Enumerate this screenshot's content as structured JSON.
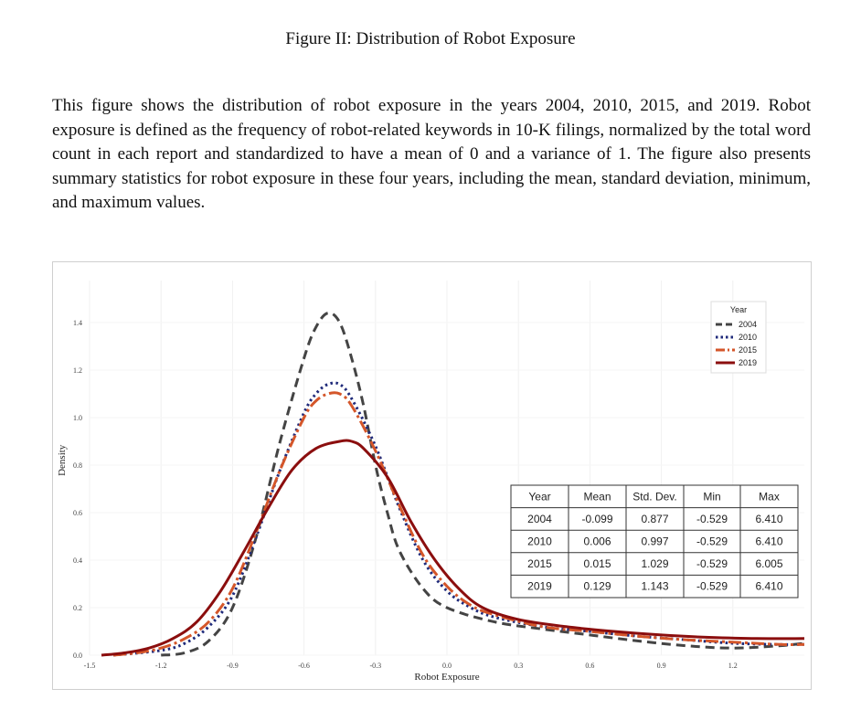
{
  "figure": {
    "title": "Figure II: Distribution of Robot Exposure",
    "caption": "This figure shows the distribution of robot exposure in the years 2004, 2010, 2015, and 2019. Robot exposure is defined as the frequency of robot-related keywords in 10-K filings, normalized by the total word count in each report and standardized to have a mean of 0 and a variance of 1. The figure also presents summary statistics for robot exposure in these four years, including the mean, standard deviation, minimum, and maximum values."
  },
  "chart_data": {
    "type": "line",
    "xlabel": "Robot Exposure",
    "ylabel": "Density",
    "xlim": [
      -1.5,
      1.5
    ],
    "ylim": [
      0.0,
      1.5
    ],
    "x_ticks": [
      "-1.5",
      "-1.2",
      "-0.9",
      "-0.6",
      "-0.3",
      "0.0",
      "0.3",
      "0.6",
      "0.9",
      "1.2"
    ],
    "y_ticks": [
      "0.0",
      "0.2",
      "0.4",
      "0.6",
      "0.8",
      "1.0",
      "1.2",
      "1.4"
    ],
    "grid": true,
    "legend": {
      "title": "Year",
      "position": "top-right"
    },
    "series": [
      {
        "name": "2004",
        "color": "#444444",
        "style": "dashed",
        "points": [
          [
            -1.2,
            0.0
          ],
          [
            -1.1,
            0.01
          ],
          [
            -1.0,
            0.06
          ],
          [
            -0.9,
            0.2
          ],
          [
            -0.8,
            0.5
          ],
          [
            -0.7,
            0.9
          ],
          [
            -0.6,
            1.25
          ],
          [
            -0.55,
            1.38
          ],
          [
            -0.5,
            1.44
          ],
          [
            -0.45,
            1.4
          ],
          [
            -0.4,
            1.25
          ],
          [
            -0.35,
            1.05
          ],
          [
            -0.3,
            0.8
          ],
          [
            -0.25,
            0.6
          ],
          [
            -0.2,
            0.44
          ],
          [
            -0.1,
            0.28
          ],
          [
            0.0,
            0.2
          ],
          [
            0.2,
            0.14
          ],
          [
            0.4,
            0.11
          ],
          [
            0.6,
            0.085
          ],
          [
            0.8,
            0.06
          ],
          [
            1.0,
            0.04
          ],
          [
            1.2,
            0.03
          ],
          [
            1.4,
            0.04
          ],
          [
            1.5,
            0.05
          ]
        ]
      },
      {
        "name": "2010",
        "color": "#1f2a7a",
        "style": "dotted",
        "points": [
          [
            -1.4,
            0.0
          ],
          [
            -1.2,
            0.02
          ],
          [
            -1.1,
            0.05
          ],
          [
            -1.0,
            0.12
          ],
          [
            -0.9,
            0.25
          ],
          [
            -0.8,
            0.5
          ],
          [
            -0.7,
            0.78
          ],
          [
            -0.6,
            1.02
          ],
          [
            -0.55,
            1.1
          ],
          [
            -0.5,
            1.14
          ],
          [
            -0.45,
            1.14
          ],
          [
            -0.4,
            1.08
          ],
          [
            -0.3,
            0.88
          ],
          [
            -0.2,
            0.62
          ],
          [
            -0.1,
            0.4
          ],
          [
            0.0,
            0.27
          ],
          [
            0.1,
            0.2
          ],
          [
            0.2,
            0.16
          ],
          [
            0.4,
            0.12
          ],
          [
            0.6,
            0.1
          ],
          [
            0.8,
            0.08
          ],
          [
            1.0,
            0.065
          ],
          [
            1.2,
            0.05
          ],
          [
            1.4,
            0.045
          ],
          [
            1.5,
            0.045
          ]
        ]
      },
      {
        "name": "2015",
        "color": "#d4562a",
        "style": "dashdot",
        "points": [
          [
            -1.4,
            0.0
          ],
          [
            -1.3,
            0.01
          ],
          [
            -1.2,
            0.03
          ],
          [
            -1.1,
            0.07
          ],
          [
            -1.0,
            0.14
          ],
          [
            -0.9,
            0.28
          ],
          [
            -0.8,
            0.52
          ],
          [
            -0.7,
            0.78
          ],
          [
            -0.6,
            1.0
          ],
          [
            -0.55,
            1.07
          ],
          [
            -0.5,
            1.1
          ],
          [
            -0.45,
            1.1
          ],
          [
            -0.4,
            1.05
          ],
          [
            -0.3,
            0.86
          ],
          [
            -0.2,
            0.63
          ],
          [
            -0.1,
            0.42
          ],
          [
            0.0,
            0.29
          ],
          [
            0.1,
            0.21
          ],
          [
            0.2,
            0.17
          ],
          [
            0.4,
            0.12
          ],
          [
            0.6,
            0.1
          ],
          [
            0.8,
            0.08
          ],
          [
            1.0,
            0.065
          ],
          [
            1.2,
            0.055
          ],
          [
            1.4,
            0.045
          ],
          [
            1.5,
            0.045
          ]
        ]
      },
      {
        "name": "2019",
        "color": "#8b0e0e",
        "style": "solid",
        "points": [
          [
            -1.45,
            0.0
          ],
          [
            -1.35,
            0.01
          ],
          [
            -1.25,
            0.03
          ],
          [
            -1.15,
            0.07
          ],
          [
            -1.05,
            0.14
          ],
          [
            -0.95,
            0.27
          ],
          [
            -0.85,
            0.44
          ],
          [
            -0.75,
            0.62
          ],
          [
            -0.65,
            0.78
          ],
          [
            -0.55,
            0.87
          ],
          [
            -0.45,
            0.9
          ],
          [
            -0.4,
            0.9
          ],
          [
            -0.35,
            0.87
          ],
          [
            -0.25,
            0.75
          ],
          [
            -0.15,
            0.56
          ],
          [
            -0.05,
            0.4
          ],
          [
            0.05,
            0.28
          ],
          [
            0.15,
            0.2
          ],
          [
            0.3,
            0.15
          ],
          [
            0.5,
            0.12
          ],
          [
            0.7,
            0.1
          ],
          [
            0.9,
            0.085
          ],
          [
            1.1,
            0.075
          ],
          [
            1.3,
            0.07
          ],
          [
            1.5,
            0.07
          ]
        ]
      }
    ],
    "table": {
      "headers": [
        "Year",
        "Mean",
        "Std. Dev.",
        "Min",
        "Max"
      ],
      "rows": [
        [
          "2004",
          "-0.099",
          "0.877",
          "-0.529",
          "6.410"
        ],
        [
          "2010",
          "0.006",
          "0.997",
          "-0.529",
          "6.410"
        ],
        [
          "2015",
          "0.015",
          "1.029",
          "-0.529",
          "6.005"
        ],
        [
          "2019",
          "0.129",
          "1.143",
          "-0.529",
          "6.410"
        ]
      ]
    }
  }
}
